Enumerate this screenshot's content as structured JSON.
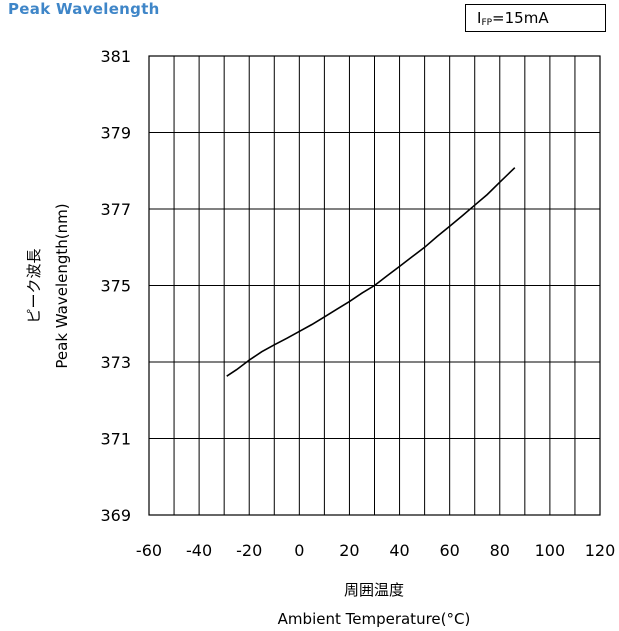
{
  "title": "Peak Wavelength",
  "condition": {
    "symbol": "I",
    "subscript": "FP",
    "value": "=15mA"
  },
  "chart_data": {
    "type": "line",
    "title": "Peak Wavelength",
    "xlabel_jp": "周囲温度",
    "xlabel": "Ambient Temperature(°C)",
    "ylabel_jp": "ピーク波長",
    "ylabel": "Peak Wavelength(nm)",
    "xlim": [
      -60,
      120
    ],
    "ylim": [
      369,
      381
    ],
    "xticks": [
      -60,
      -40,
      -20,
      0,
      20,
      40,
      60,
      80,
      100,
      120
    ],
    "yticks": [
      369,
      371,
      373,
      375,
      377,
      379,
      381
    ],
    "x_minor_grid_step": 10,
    "grid": true,
    "series": [
      {
        "x": [
          -29,
          -25,
          -20,
          -15,
          -10,
          -5,
          0,
          5,
          10,
          15,
          20,
          25,
          30,
          35,
          40,
          45,
          50,
          55,
          60,
          65,
          70,
          75,
          80,
          86
        ],
        "y": [
          372.63,
          372.8,
          373.05,
          373.27,
          373.45,
          373.62,
          373.8,
          373.98,
          374.18,
          374.38,
          374.58,
          374.8,
          375.0,
          375.25,
          375.5,
          375.75,
          376.0,
          376.28,
          376.55,
          376.82,
          377.1,
          377.38,
          377.7,
          378.08
        ]
      }
    ]
  }
}
